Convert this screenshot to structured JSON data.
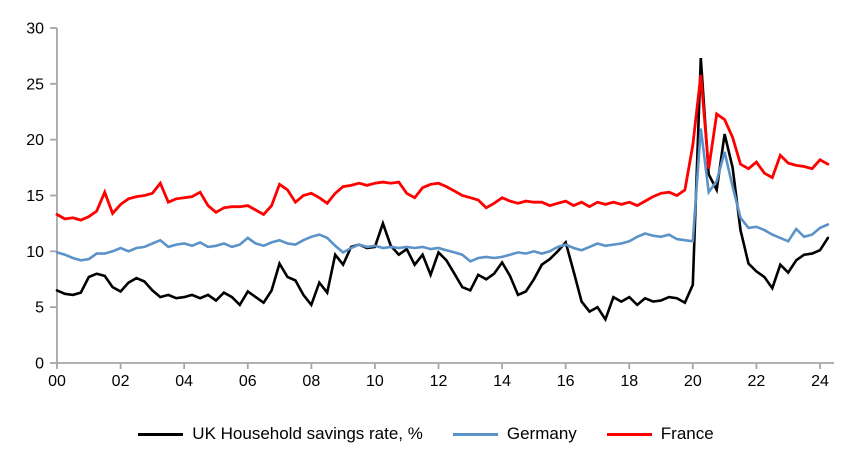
{
  "chart_data": {
    "type": "line",
    "title": "",
    "xlabel": "",
    "ylabel": "",
    "grid": false,
    "legend_position": "bottom",
    "axis_color": "#a6a6a6",
    "tick_label_color": "#000000",
    "x_axis": {
      "start": "2000 Q1",
      "end": "2024 Q2",
      "points_per_year": 4,
      "tick_every_n_points": 8,
      "tick_labels": [
        "00",
        "02",
        "04",
        "06",
        "08",
        "10",
        "12",
        "14",
        "16",
        "18",
        "20",
        "22",
        "24"
      ]
    },
    "y_axis": {
      "min": 0,
      "max": 30,
      "tick_step": 5,
      "tick_labels": [
        "0",
        "5",
        "10",
        "15",
        "20",
        "25",
        "30"
      ]
    },
    "series": [
      {
        "name": "UK Household savings rate, %",
        "color": "#000000",
        "width": 2.6,
        "values": [
          6.5,
          6.2,
          6.1,
          6.3,
          7.7,
          8.0,
          7.8,
          6.8,
          6.4,
          7.2,
          7.6,
          7.3,
          6.5,
          5.9,
          6.1,
          5.8,
          5.9,
          6.1,
          5.8,
          6.1,
          5.6,
          6.3,
          5.9,
          5.2,
          6.4,
          5.9,
          5.4,
          6.5,
          8.9,
          7.7,
          7.4,
          6.1,
          5.2,
          7.2,
          6.3,
          9.7,
          8.8,
          10.4,
          10.6,
          10.3,
          10.4,
          12.5,
          10.5,
          9.7,
          10.2,
          8.8,
          9.7,
          7.9,
          9.9,
          9.2,
          8.0,
          6.8,
          6.5,
          7.9,
          7.5,
          8.0,
          9.0,
          7.8,
          6.1,
          6.4,
          7.5,
          8.8,
          9.3,
          10.0,
          10.8,
          8.2,
          5.5,
          4.6,
          5.0,
          3.9,
          5.9,
          5.5,
          5.9,
          5.2,
          5.8,
          5.5,
          5.6,
          5.9,
          5.8,
          5.4,
          7.0,
          27.3,
          16.9,
          15.5,
          20.5,
          17.5,
          11.9,
          8.9,
          8.2,
          7.7,
          6.7,
          8.8,
          8.1,
          9.2,
          9.7,
          9.8,
          10.1,
          11.2
        ]
      },
      {
        "name": "Germany",
        "color": "#5b93c8",
        "width": 2.6,
        "values": [
          9.9,
          9.7,
          9.4,
          9.2,
          9.3,
          9.8,
          9.8,
          10.0,
          10.3,
          10.0,
          10.3,
          10.4,
          10.7,
          11.0,
          10.4,
          10.6,
          10.7,
          10.5,
          10.8,
          10.4,
          10.5,
          10.7,
          10.4,
          10.6,
          11.2,
          10.7,
          10.5,
          10.8,
          11.0,
          10.7,
          10.6,
          11.0,
          11.3,
          11.5,
          11.2,
          10.5,
          9.9,
          10.3,
          10.6,
          10.4,
          10.5,
          10.3,
          10.4,
          10.3,
          10.4,
          10.3,
          10.4,
          10.2,
          10.3,
          10.1,
          9.9,
          9.7,
          9.1,
          9.4,
          9.5,
          9.4,
          9.5,
          9.7,
          9.9,
          9.8,
          10.0,
          9.8,
          10.0,
          10.4,
          10.6,
          10.3,
          10.1,
          10.4,
          10.7,
          10.5,
          10.6,
          10.7,
          10.9,
          11.3,
          11.6,
          11.4,
          11.3,
          11.5,
          11.1,
          11.0,
          10.9,
          21.0,
          15.3,
          16.3,
          18.9,
          15.8,
          13.0,
          12.1,
          12.2,
          11.9,
          11.5,
          11.2,
          10.9,
          12.0,
          11.3,
          11.5,
          12.1,
          12.4
        ]
      },
      {
        "name": "France",
        "color": "#ff0000",
        "width": 2.8,
        "values": [
          13.3,
          12.9,
          13.0,
          12.8,
          13.1,
          13.6,
          15.3,
          13.4,
          14.2,
          14.7,
          14.9,
          15.0,
          15.2,
          16.1,
          14.4,
          14.7,
          14.8,
          14.9,
          15.3,
          14.1,
          13.5,
          13.9,
          14.0,
          14.0,
          14.1,
          13.7,
          13.3,
          14.1,
          16.0,
          15.5,
          14.4,
          15.0,
          15.2,
          14.8,
          14.3,
          15.2,
          15.8,
          15.9,
          16.1,
          15.9,
          16.1,
          16.2,
          16.1,
          16.2,
          15.2,
          14.8,
          15.7,
          16.0,
          16.1,
          15.8,
          15.4,
          15.0,
          14.8,
          14.6,
          13.9,
          14.3,
          14.8,
          14.5,
          14.3,
          14.5,
          14.4,
          14.4,
          14.1,
          14.3,
          14.5,
          14.1,
          14.4,
          14.0,
          14.4,
          14.2,
          14.4,
          14.2,
          14.4,
          14.1,
          14.5,
          14.9,
          15.2,
          15.3,
          15.0,
          15.5,
          19.5,
          25.8,
          17.4,
          22.3,
          21.8,
          20.2,
          17.8,
          17.4,
          18.0,
          17.0,
          16.6,
          18.6,
          17.9,
          17.7,
          17.6,
          17.4,
          18.2,
          17.8
        ]
      }
    ]
  }
}
